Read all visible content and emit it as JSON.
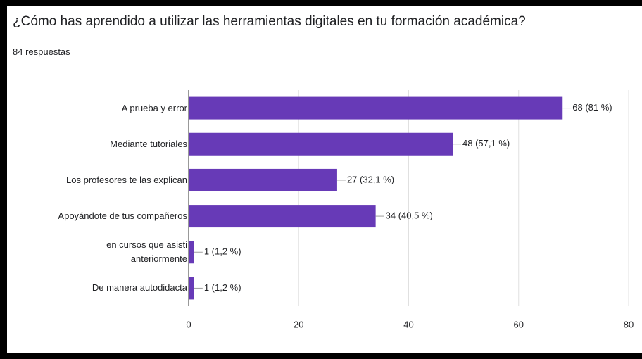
{
  "chart_data": {
    "type": "bar",
    "orientation": "horizontal",
    "title": "¿Cómo has aprendido a utilizar las herramientas digitales en tu formación académica?",
    "subtitle": "84 respuestas",
    "categories": [
      "A prueba y error",
      "Mediante tutoriales",
      "Los profesores te las explican",
      "Apoyándote de tus compañeros",
      "en cursos que asisti\nanteriormente",
      "De manera autodidacta"
    ],
    "values": [
      68,
      48,
      27,
      34,
      1,
      1
    ],
    "value_labels": [
      "68 (81 %)",
      "48 (57,1 %)",
      "27 (32,1 %)",
      "34 (40,5 %)",
      "1 (1,2 %)",
      "1 (1,2 %)"
    ],
    "color": "#673ab7",
    "xlim": [
      0,
      80
    ],
    "xticks": [
      0,
      20,
      40,
      60,
      80
    ],
    "grid": true
  }
}
